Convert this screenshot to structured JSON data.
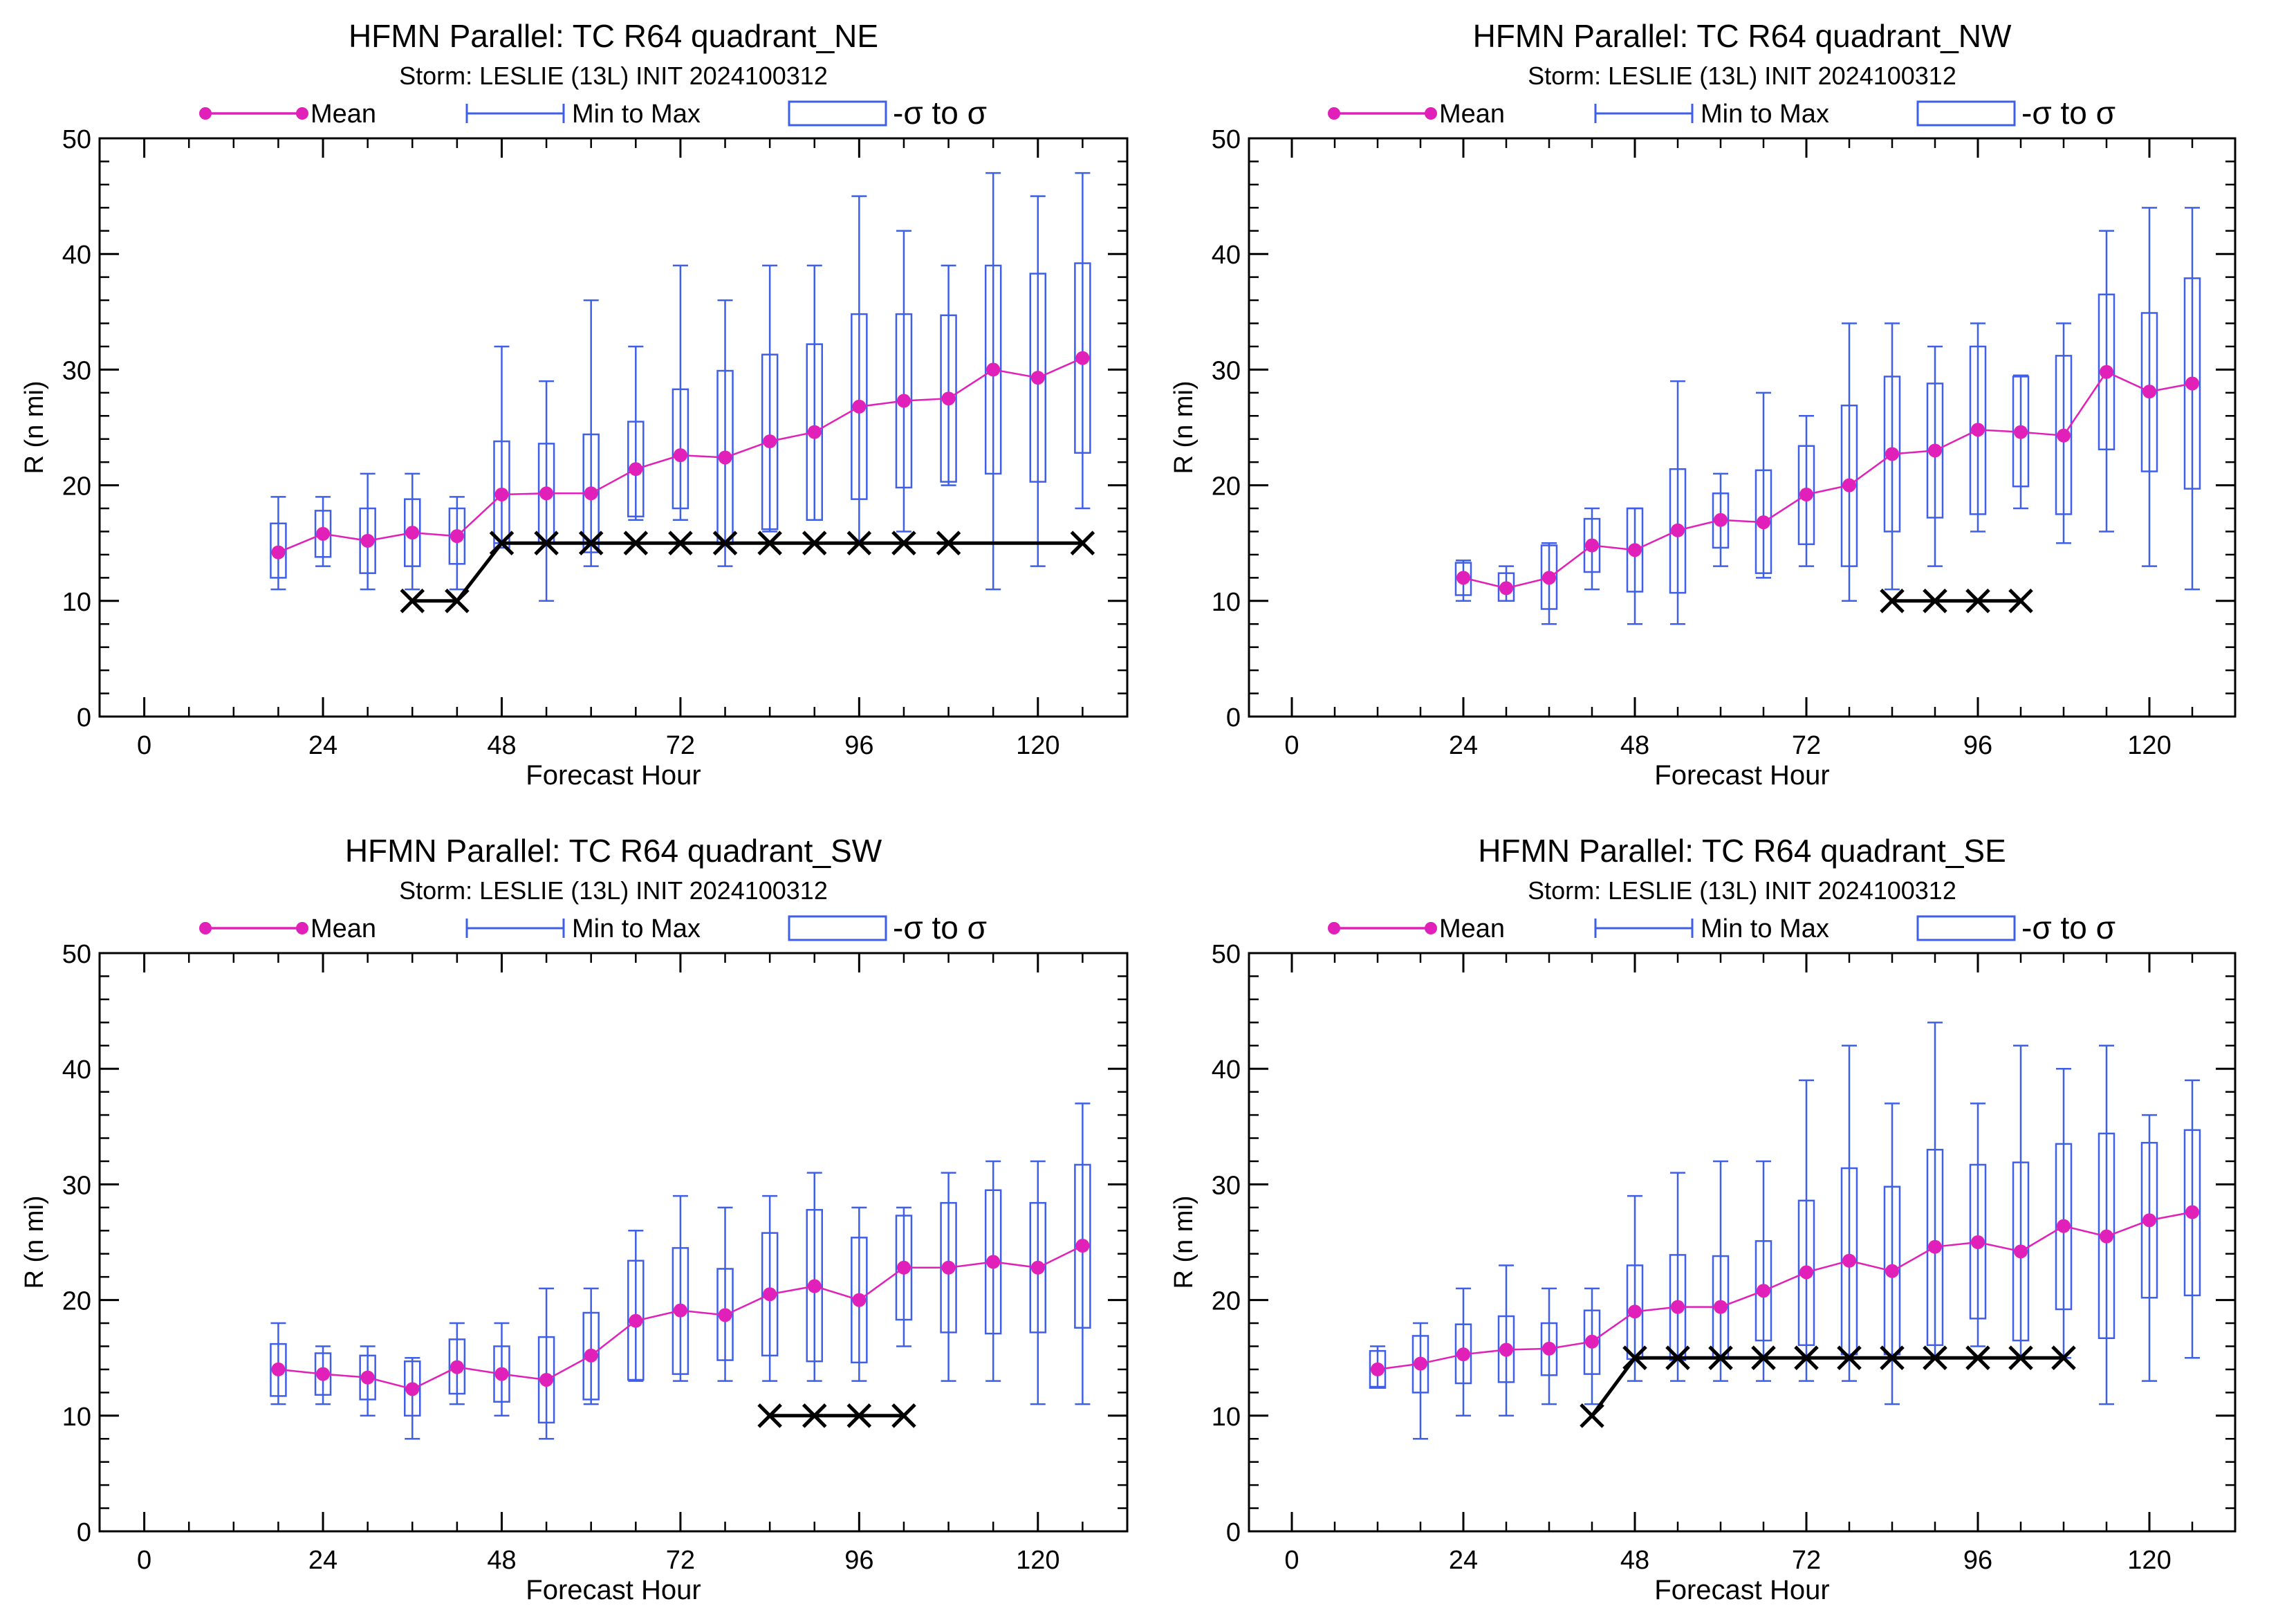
{
  "page": {
    "background": "#ffffff"
  },
  "legend": {
    "mean_label": "Mean",
    "minmax_label": "Min to Max",
    "sigma_label": "-σ to σ"
  },
  "colors": {
    "mean": "#e020b8",
    "box": "#3f5fe8",
    "best_track": "#000000",
    "axis": "#000000"
  },
  "chart_data": [
    {
      "type": "box",
      "title": "HFMN Parallel: TC  R64 quadrant_NE",
      "subtitle": "Storm: LESLIE (13L) INIT 2024100312",
      "xlabel": "Forecast Hour",
      "ylabel": "R (n mi)",
      "xlim": [
        -6,
        132
      ],
      "ylim": [
        0,
        50
      ],
      "xticks": [
        0,
        24,
        48,
        72,
        96,
        120
      ],
      "yticks": [
        0,
        10,
        20,
        30,
        40,
        50
      ],
      "boxes": [
        {
          "x": 18,
          "min": 11,
          "max": 19,
          "lo": 12,
          "hi": 16.7,
          "mean": 14.2
        },
        {
          "x": 24,
          "min": 13,
          "max": 19,
          "lo": 13.8,
          "hi": 17.8,
          "mean": 15.8
        },
        {
          "x": 30,
          "min": 11,
          "max": 21,
          "lo": 12.4,
          "hi": 18,
          "mean": 15.2
        },
        {
          "x": 36,
          "min": 11,
          "max": 21,
          "lo": 13,
          "hi": 18.8,
          "mean": 15.9
        },
        {
          "x": 42,
          "min": 11,
          "max": 19,
          "lo": 13.2,
          "hi": 18,
          "mean": 15.6
        },
        {
          "x": 48,
          "min": 15,
          "max": 32,
          "lo": 14.6,
          "hi": 23.8,
          "mean": 19.2
        },
        {
          "x": 54,
          "min": 10,
          "max": 29,
          "lo": 15,
          "hi": 23.6,
          "mean": 19.3
        },
        {
          "x": 60,
          "min": 13,
          "max": 36,
          "lo": 14.2,
          "hi": 24.4,
          "mean": 19.3
        },
        {
          "x": 66,
          "min": 17,
          "max": 32,
          "lo": 17.3,
          "hi": 25.5,
          "mean": 21.4
        },
        {
          "x": 72,
          "min": 17,
          "max": 39,
          "lo": 18,
          "hi": 28.3,
          "mean": 22.6
        },
        {
          "x": 78,
          "min": 13,
          "max": 36,
          "lo": 14.9,
          "hi": 29.9,
          "mean": 22.4
        },
        {
          "x": 84,
          "min": 16,
          "max": 39,
          "lo": 16.2,
          "hi": 31.3,
          "mean": 23.8
        },
        {
          "x": 90,
          "min": 17,
          "max": 39,
          "lo": 17,
          "hi": 32.2,
          "mean": 24.6
        },
        {
          "x": 96,
          "min": 15,
          "max": 45,
          "lo": 18.8,
          "hi": 34.8,
          "mean": 26.8
        },
        {
          "x": 102,
          "min": 16,
          "max": 42,
          "lo": 19.8,
          "hi": 34.8,
          "mean": 27.3
        },
        {
          "x": 108,
          "min": 20,
          "max": 39,
          "lo": 20.3,
          "hi": 34.7,
          "mean": 27.5
        },
        {
          "x": 114,
          "min": 11,
          "max": 47,
          "lo": 21,
          "hi": 39,
          "mean": 30
        },
        {
          "x": 120,
          "min": 13,
          "max": 45,
          "lo": 20.3,
          "hi": 38.3,
          "mean": 29.3
        },
        {
          "x": 126,
          "min": 18,
          "max": 47,
          "lo": 22.8,
          "hi": 39.2,
          "mean": 31
        }
      ],
      "best_track": {
        "line": [
          [
            36,
            10
          ],
          [
            42,
            10
          ],
          [
            48,
            15
          ],
          [
            126,
            15
          ]
        ],
        "markers": [
          [
            36,
            10
          ],
          [
            42,
            10
          ],
          [
            48,
            15
          ],
          [
            54,
            15
          ],
          [
            60,
            15
          ],
          [
            66,
            15
          ],
          [
            72,
            15
          ],
          [
            78,
            15
          ],
          [
            84,
            15
          ],
          [
            90,
            15
          ],
          [
            96,
            15
          ],
          [
            102,
            15
          ],
          [
            108,
            15
          ],
          [
            126,
            15
          ]
        ]
      }
    },
    {
      "type": "box",
      "title": "HFMN Parallel: TC  R64 quadrant_NW",
      "subtitle": "Storm: LESLIE (13L) INIT 2024100312",
      "xlabel": "Forecast Hour",
      "ylabel": "R (n mi)",
      "xlim": [
        -6,
        132
      ],
      "ylim": [
        0,
        50
      ],
      "xticks": [
        0,
        24,
        48,
        72,
        96,
        120
      ],
      "yticks": [
        0,
        10,
        20,
        30,
        40,
        50
      ],
      "boxes": [
        {
          "x": 24,
          "min": 10,
          "max": 13.5,
          "lo": 10.5,
          "hi": 13.3,
          "mean": 12
        },
        {
          "x": 30,
          "min": 10,
          "max": 13,
          "lo": 10,
          "hi": 12.4,
          "mean": 11.1
        },
        {
          "x": 36,
          "min": 8,
          "max": 15,
          "lo": 9.3,
          "hi": 14.8,
          "mean": 12
        },
        {
          "x": 42,
          "min": 11,
          "max": 18,
          "lo": 12.5,
          "hi": 17.1,
          "mean": 14.8
        },
        {
          "x": 48,
          "min": 8,
          "max": 18,
          "lo": 10.8,
          "hi": 18,
          "mean": 14.4
        },
        {
          "x": 54,
          "min": 8,
          "max": 29,
          "lo": 10.7,
          "hi": 21.4,
          "mean": 16.1
        },
        {
          "x": 60,
          "min": 13,
          "max": 21,
          "lo": 14.6,
          "hi": 19.3,
          "mean": 17
        },
        {
          "x": 66,
          "min": 12,
          "max": 28,
          "lo": 12.4,
          "hi": 21.3,
          "mean": 16.8
        },
        {
          "x": 72,
          "min": 13,
          "max": 26,
          "lo": 14.9,
          "hi": 23.4,
          "mean": 19.2
        },
        {
          "x": 78,
          "min": 10,
          "max": 34,
          "lo": 13,
          "hi": 26.9,
          "mean": 20
        },
        {
          "x": 84,
          "min": 11,
          "max": 34,
          "lo": 16,
          "hi": 29.4,
          "mean": 22.7
        },
        {
          "x": 90,
          "min": 13,
          "max": 32,
          "lo": 17.2,
          "hi": 28.8,
          "mean": 23
        },
        {
          "x": 96,
          "min": 16,
          "max": 34,
          "lo": 17.5,
          "hi": 32,
          "mean": 24.8
        },
        {
          "x": 102,
          "min": 18,
          "max": 29.5,
          "lo": 19.9,
          "hi": 29.4,
          "mean": 24.6
        },
        {
          "x": 108,
          "min": 15,
          "max": 34,
          "lo": 17.5,
          "hi": 31.2,
          "mean": 24.3
        },
        {
          "x": 114,
          "min": 16,
          "max": 42,
          "lo": 23.1,
          "hi": 36.5,
          "mean": 29.8
        },
        {
          "x": 120,
          "min": 13,
          "max": 44,
          "lo": 21.2,
          "hi": 34.9,
          "mean": 28.1
        },
        {
          "x": 126,
          "min": 11,
          "max": 44,
          "lo": 19.7,
          "hi": 37.9,
          "mean": 28.8
        }
      ],
      "best_track": {
        "line": [
          [
            84,
            10
          ],
          [
            102,
            10
          ]
        ],
        "markers": [
          [
            84,
            10
          ],
          [
            90,
            10
          ],
          [
            96,
            10
          ],
          [
            102,
            10
          ]
        ]
      }
    },
    {
      "type": "box",
      "title": "HFMN Parallel: TC  R64 quadrant_SW",
      "subtitle": "Storm: LESLIE (13L) INIT 2024100312",
      "xlabel": "Forecast Hour",
      "ylabel": "R (n mi)",
      "xlim": [
        -6,
        132
      ],
      "ylim": [
        0,
        50
      ],
      "xticks": [
        0,
        24,
        48,
        72,
        96,
        120
      ],
      "yticks": [
        0,
        10,
        20,
        30,
        40,
        50
      ],
      "boxes": [
        {
          "x": 18,
          "min": 11,
          "max": 18,
          "lo": 11.7,
          "hi": 16.2,
          "mean": 14
        },
        {
          "x": 24,
          "min": 11,
          "max": 16,
          "lo": 11.8,
          "hi": 15.4,
          "mean": 13.6
        },
        {
          "x": 30,
          "min": 10,
          "max": 16,
          "lo": 11.4,
          "hi": 15.2,
          "mean": 13.3
        },
        {
          "x": 36,
          "min": 8,
          "max": 15,
          "lo": 10,
          "hi": 14.7,
          "mean": 12.3
        },
        {
          "x": 42,
          "min": 11,
          "max": 18,
          "lo": 11.9,
          "hi": 16.6,
          "mean": 14.2
        },
        {
          "x": 48,
          "min": 10,
          "max": 18,
          "lo": 11.2,
          "hi": 16,
          "mean": 13.6
        },
        {
          "x": 54,
          "min": 8,
          "max": 21,
          "lo": 9.4,
          "hi": 16.8,
          "mean": 13.1
        },
        {
          "x": 60,
          "min": 11,
          "max": 21,
          "lo": 11.4,
          "hi": 18.9,
          "mean": 15.2
        },
        {
          "x": 66,
          "min": 13,
          "max": 26,
          "lo": 13.1,
          "hi": 23.4,
          "mean": 18.2
        },
        {
          "x": 72,
          "min": 13,
          "max": 29,
          "lo": 13.6,
          "hi": 24.5,
          "mean": 19.1
        },
        {
          "x": 78,
          "min": 13,
          "max": 28,
          "lo": 14.8,
          "hi": 22.7,
          "mean": 18.7
        },
        {
          "x": 84,
          "min": 13,
          "max": 29,
          "lo": 15.2,
          "hi": 25.8,
          "mean": 20.5
        },
        {
          "x": 90,
          "min": 13,
          "max": 31,
          "lo": 14.7,
          "hi": 27.8,
          "mean": 21.2
        },
        {
          "x": 96,
          "min": 13,
          "max": 28,
          "lo": 14.6,
          "hi": 25.4,
          "mean": 20
        },
        {
          "x": 102,
          "min": 16,
          "max": 28,
          "lo": 18.3,
          "hi": 27.3,
          "mean": 22.8
        },
        {
          "x": 108,
          "min": 13,
          "max": 31,
          "lo": 17.2,
          "hi": 28.4,
          "mean": 22.8
        },
        {
          "x": 114,
          "min": 13,
          "max": 32,
          "lo": 17.1,
          "hi": 29.5,
          "mean": 23.3
        },
        {
          "x": 120,
          "min": 11,
          "max": 32,
          "lo": 17.2,
          "hi": 28.4,
          "mean": 22.8
        },
        {
          "x": 126,
          "min": 11,
          "max": 37,
          "lo": 17.6,
          "hi": 31.7,
          "mean": 24.7
        }
      ],
      "best_track": {
        "line": [
          [
            84,
            10
          ],
          [
            102,
            10
          ]
        ],
        "markers": [
          [
            84,
            10
          ],
          [
            90,
            10
          ],
          [
            96,
            10
          ],
          [
            102,
            10
          ]
        ]
      }
    },
    {
      "type": "box",
      "title": "HFMN Parallel: TC  R64 quadrant_SE",
      "subtitle": "Storm: LESLIE (13L) INIT 2024100312",
      "xlabel": "Forecast Hour",
      "ylabel": "R (n mi)",
      "xlim": [
        -6,
        132
      ],
      "ylim": [
        0,
        50
      ],
      "xticks": [
        0,
        24,
        48,
        72,
        96,
        120
      ],
      "yticks": [
        0,
        10,
        20,
        30,
        40,
        50
      ],
      "boxes": [
        {
          "x": 12,
          "min": 12.5,
          "max": 16,
          "lo": 12.4,
          "hi": 15.6,
          "mean": 14
        },
        {
          "x": 18,
          "min": 8,
          "max": 18,
          "lo": 12,
          "hi": 16.9,
          "mean": 14.5
        },
        {
          "x": 24,
          "min": 10,
          "max": 21,
          "lo": 12.8,
          "hi": 17.9,
          "mean": 15.3
        },
        {
          "x": 30,
          "min": 10,
          "max": 23,
          "lo": 12.9,
          "hi": 18.6,
          "mean": 15.7
        },
        {
          "x": 36,
          "min": 11,
          "max": 21,
          "lo": 13.5,
          "hi": 18,
          "mean": 15.8
        },
        {
          "x": 42,
          "min": 11,
          "max": 21,
          "lo": 13.6,
          "hi": 19.1,
          "mean": 16.4
        },
        {
          "x": 48,
          "min": 13,
          "max": 29,
          "lo": 14.9,
          "hi": 23,
          "mean": 19
        },
        {
          "x": 54,
          "min": 13,
          "max": 31,
          "lo": 14.8,
          "hi": 23.9,
          "mean": 19.4
        },
        {
          "x": 60,
          "min": 13,
          "max": 32,
          "lo": 15,
          "hi": 23.8,
          "mean": 19.4
        },
        {
          "x": 66,
          "min": 13,
          "max": 32,
          "lo": 16.5,
          "hi": 25.1,
          "mean": 20.8
        },
        {
          "x": 72,
          "min": 13,
          "max": 39,
          "lo": 16.1,
          "hi": 28.6,
          "mean": 22.4
        },
        {
          "x": 78,
          "min": 13,
          "max": 42,
          "lo": 15.3,
          "hi": 31.4,
          "mean": 23.4
        },
        {
          "x": 84,
          "min": 11,
          "max": 37,
          "lo": 15.3,
          "hi": 29.8,
          "mean": 22.5
        },
        {
          "x": 90,
          "min": 15,
          "max": 44,
          "lo": 16.1,
          "hi": 33,
          "mean": 24.6
        },
        {
          "x": 96,
          "min": 16,
          "max": 37,
          "lo": 18.4,
          "hi": 31.7,
          "mean": 25
        },
        {
          "x": 102,
          "min": 15,
          "max": 42,
          "lo": 16.5,
          "hi": 31.9,
          "mean": 24.2
        },
        {
          "x": 108,
          "min": 15,
          "max": 40,
          "lo": 19.2,
          "hi": 33.5,
          "mean": 26.4
        },
        {
          "x": 114,
          "min": 11,
          "max": 42,
          "lo": 16.7,
          "hi": 34.4,
          "mean": 25.5
        },
        {
          "x": 120,
          "min": 13,
          "max": 36,
          "lo": 20.2,
          "hi": 33.6,
          "mean": 26.9
        },
        {
          "x": 126,
          "min": 15,
          "max": 39,
          "lo": 20.4,
          "hi": 34.7,
          "mean": 27.6
        }
      ],
      "best_track": {
        "line": [
          [
            42,
            10
          ],
          [
            48,
            15
          ],
          [
            108,
            15
          ]
        ],
        "markers": [
          [
            42,
            10
          ],
          [
            48,
            15
          ],
          [
            54,
            15
          ],
          [
            60,
            15
          ],
          [
            66,
            15
          ],
          [
            72,
            15
          ],
          [
            78,
            15
          ],
          [
            84,
            15
          ],
          [
            90,
            15
          ],
          [
            96,
            15
          ],
          [
            102,
            15
          ],
          [
            108,
            15
          ]
        ]
      }
    }
  ]
}
